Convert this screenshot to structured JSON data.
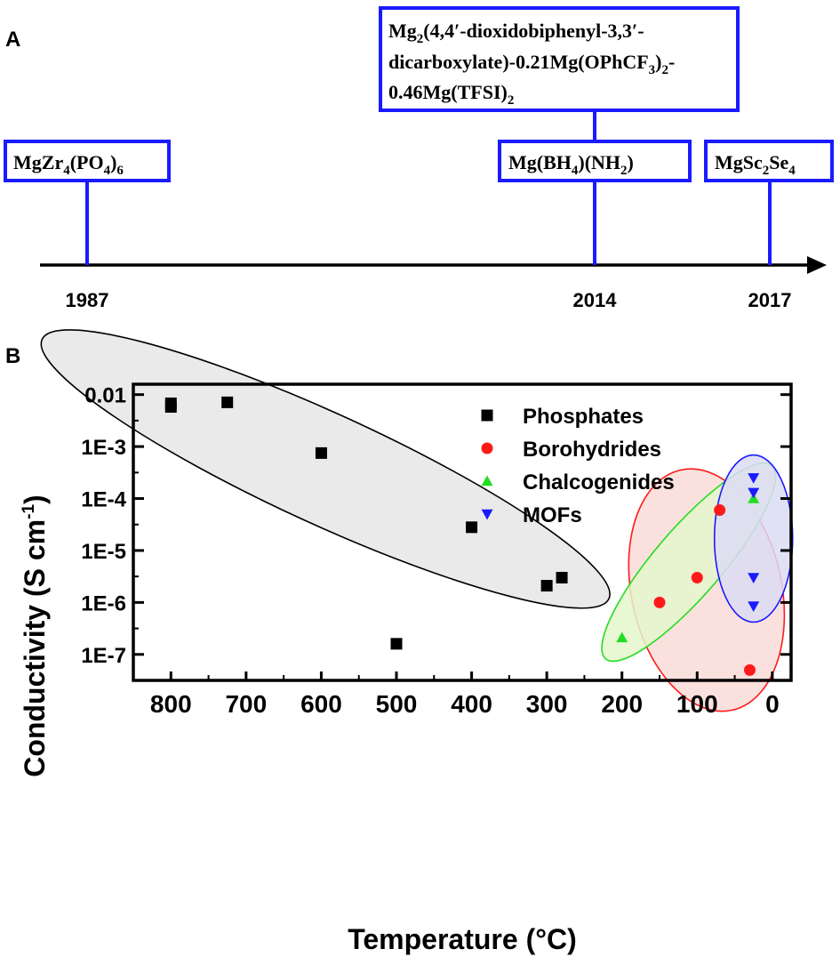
{
  "panel_a": {
    "label": "A",
    "years": [
      "1987",
      "2014",
      "2017"
    ],
    "boxes": {
      "mgzr": {
        "parts": [
          "MgZr",
          "4",
          "(PO",
          "4",
          ")",
          "6"
        ]
      },
      "mgbh": {
        "parts": [
          "Mg(BH",
          "4",
          ")(NH",
          "2",
          ")"
        ]
      },
      "mgsc": {
        "parts": [
          "MgSc",
          "2",
          "Se",
          "4"
        ]
      },
      "mof_line1": {
        "parts": [
          "Mg",
          "2",
          "(4,4′-dioxidobiphenyl-3,3′-"
        ]
      },
      "mof_line2": {
        "parts": [
          "dicarboxylate)-0.21Mg(OPhCF",
          "3",
          ")",
          "2",
          "-"
        ]
      },
      "mof_line3": {
        "parts": [
          "0.46Mg(TFSI)",
          "2"
        ]
      }
    },
    "colors": {
      "box": "#1a1aff",
      "axis": "#000000"
    }
  },
  "chart_data": {
    "type": "scatter",
    "panel_label": "B",
    "xlabel": "Temperature (°C)",
    "ylabel_main": "Conductivity (S cm",
    "ylabel_sup": "-1",
    "ylabel_close": ")",
    "x_reversed": true,
    "xlim": [
      850,
      -25
    ],
    "ylim_log10": [
      -7.5,
      -1.8
    ],
    "y_scale": "log",
    "x_ticks": [
      800,
      700,
      600,
      500,
      400,
      300,
      200,
      100,
      0
    ],
    "x_tick_labels": [
      "800",
      "700",
      "600",
      "500",
      "400",
      "300",
      "200",
      "100",
      "0"
    ],
    "y_ticks_log10": [
      -2,
      -3,
      -4,
      -5,
      -6,
      -7
    ],
    "y_tick_labels": [
      "0.01",
      "1E-3",
      "1E-4",
      "1E-5",
      "1E-6",
      "1E-7"
    ],
    "legend_position": "top-right",
    "series": [
      {
        "name": "Phosphates",
        "marker": "square",
        "color": "#000000",
        "points": [
          [
            800,
            0.0068
          ],
          [
            800,
            0.0058
          ],
          [
            725,
            0.0071
          ],
          [
            600,
            0.00075
          ],
          [
            400,
            2.8e-05
          ],
          [
            300,
            2.1e-06
          ],
          [
            280,
            3e-06
          ],
          [
            500,
            1.6e-07
          ]
        ]
      },
      {
        "name": "Borohydrides",
        "marker": "circle",
        "color": "#ff1a1a",
        "points": [
          [
            70,
            6e-05
          ],
          [
            100,
            3e-06
          ],
          [
            150,
            1e-06
          ],
          [
            30,
            5e-08
          ]
        ]
      },
      {
        "name": "Chalcogenides",
        "marker": "triangle-up",
        "color": "#22dd22",
        "points": [
          [
            25,
            0.0001
          ],
          [
            200,
            2.1e-07
          ]
        ]
      },
      {
        "name": "MOFs",
        "marker": "triangle-down",
        "color": "#1a1aff",
        "points": [
          [
            25,
            0.00025
          ],
          [
            25,
            0.00013
          ],
          [
            25,
            3e-06
          ],
          [
            25,
            8.5e-07
          ]
        ]
      }
    ],
    "ellipses": [
      {
        "group": "Phosphates",
        "fill": "#e6e6e6",
        "stroke": "#000000"
      },
      {
        "group": "Borohydrides",
        "fill": "#fadcd8",
        "stroke": "#ff1a1a"
      },
      {
        "group": "Chalcogenides",
        "fill": "#e4f6cc",
        "stroke": "#22dd22"
      },
      {
        "group": "MOFs",
        "fill": "#dcdcf4",
        "stroke": "#1a1aff"
      }
    ]
  }
}
